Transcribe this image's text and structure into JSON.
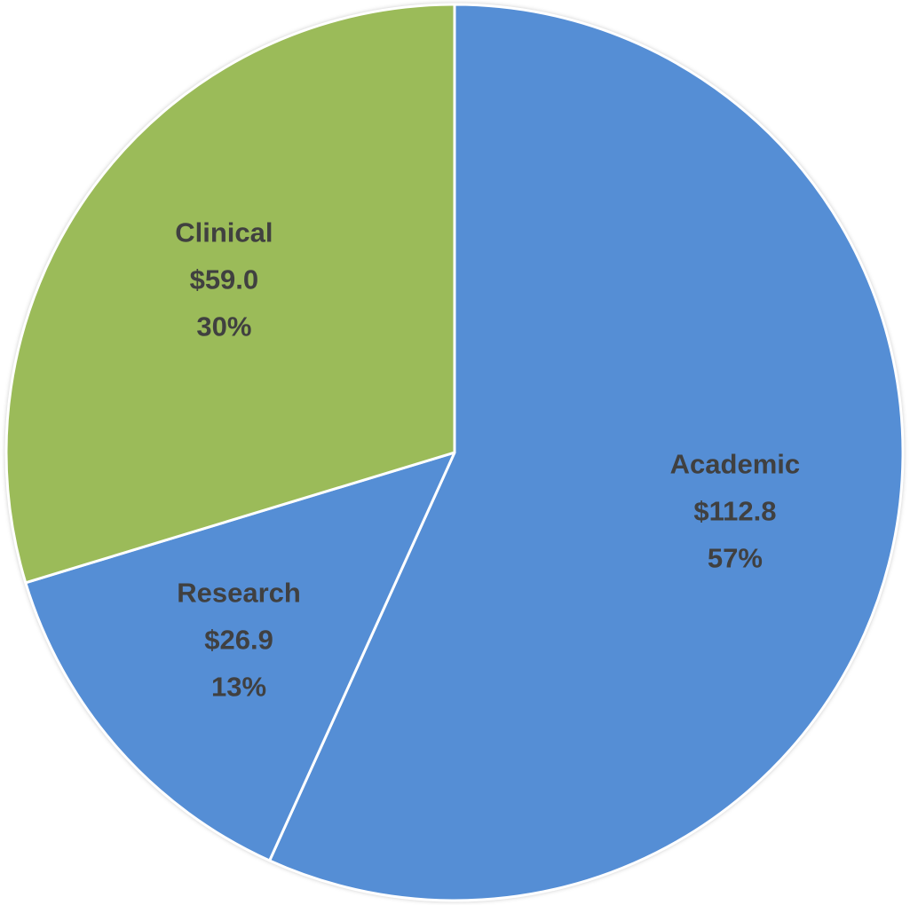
{
  "chart_data": {
    "type": "pie",
    "categories": [
      "Academic",
      "Research",
      "Clinical"
    ],
    "values": [
      112.8,
      26.9,
      59.0
    ],
    "value_labels": [
      "$112.8",
      "$26.9",
      "$59.0"
    ],
    "percentages": [
      57,
      13,
      30
    ],
    "percentage_labels": [
      "57%",
      "13%",
      "30%"
    ],
    "colors": [
      "#558ed5",
      "#558ed5",
      "#9bbb59"
    ],
    "start_angle": 0,
    "direction": "clockwise"
  }
}
